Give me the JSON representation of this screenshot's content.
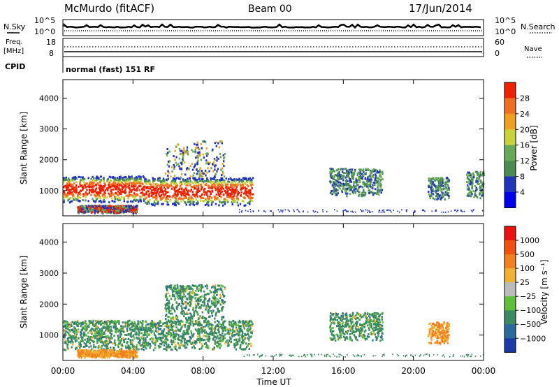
{
  "header": {
    "station": "McMurdo (fitACF)",
    "beam": "Beam 00",
    "date": "17/Jun/2014"
  },
  "noise_panel": {
    "left_label": "N.Sky",
    "right_label": "N.Search",
    "left_ticks": [
      "10^5",
      "10^0"
    ],
    "right_ticks": [
      "10^5",
      "10^0"
    ]
  },
  "freq_panel": {
    "left_label_1": "Freq.",
    "left_label_2": "[MHz]",
    "left_ticks": [
      "18",
      "8"
    ],
    "right_label": "Nave",
    "right_ticks": [
      "60",
      "0"
    ],
    "cpid_label": "CPID",
    "cpid_text": "normal (fast) 151 RF"
  },
  "x_axis": {
    "label": "Time UT",
    "ticks": [
      "00:00",
      "04:00",
      "08:00",
      "12:00",
      "16:00",
      "20:00",
      "00:00"
    ],
    "range_hours": [
      0,
      24
    ]
  },
  "chart_data": [
    {
      "type": "heatmap",
      "ylabel": "Slant Range [km]",
      "y_ticks": [
        "1000",
        "2000",
        "3000",
        "4000"
      ],
      "ylim": [
        180,
        4600
      ],
      "colorbar": {
        "label": "Power [dB]",
        "ticks": [
          "4",
          "8",
          "12",
          "16",
          "20",
          "24",
          "28"
        ],
        "range": [
          0,
          30
        ],
        "colors": [
          "#0000ee",
          "#2233bb",
          "#4a8a55",
          "#66aa55",
          "#c8d23a",
          "#f0a020",
          "#f07020",
          "#ee2200"
        ]
      },
      "blobs": [
        {
          "t": [
            0.0,
            4.6
          ],
          "r": [
            600,
            1450
          ],
          "level": "strong"
        },
        {
          "t": [
            4.6,
            10.8
          ],
          "r": [
            500,
            1400
          ],
          "level": "strong"
        },
        {
          "t": [
            5.8,
            8.0
          ],
          "r": [
            1400,
            2500
          ],
          "level": "streak"
        },
        {
          "t": [
            7.4,
            9.2
          ],
          "r": [
            1400,
            2600
          ],
          "level": "streak"
        },
        {
          "t": [
            0.8,
            4.2
          ],
          "r": [
            250,
            500
          ],
          "level": "medium"
        },
        {
          "t": [
            15.2,
            18.2
          ],
          "r": [
            800,
            1700
          ],
          "level": "weak"
        },
        {
          "t": [
            20.8,
            22.0
          ],
          "r": [
            700,
            1400
          ],
          "level": "weak"
        },
        {
          "t": [
            23.0,
            24.0
          ],
          "r": [
            700,
            1600
          ],
          "level": "weak"
        }
      ]
    },
    {
      "type": "heatmap",
      "ylabel": "Slant Range [km]",
      "y_ticks": [
        "1000",
        "2000",
        "3000",
        "4000"
      ],
      "ylim": [
        180,
        4600
      ],
      "colorbar": {
        "label": "Velocity [m s⁻¹]",
        "ticks": [
          "1000",
          "500",
          "100",
          "25",
          "−25",
          "−100",
          "−500",
          "−1000"
        ],
        "range": [
          -1000,
          1000
        ],
        "colors": [
          "#1a3aa8",
          "#2a6a9a",
          "#3c8a60",
          "#5fbf3a",
          "#bbbbbb",
          "#f0b030",
          "#f08020",
          "#f05010",
          "#ee1010"
        ]
      },
      "blobs": [
        {
          "t": [
            0.0,
            10.8
          ],
          "r": [
            500,
            1450
          ],
          "level": "green"
        },
        {
          "t": [
            5.8,
            9.2
          ],
          "r": [
            1400,
            2600
          ],
          "level": "green"
        },
        {
          "t": [
            15.2,
            18.2
          ],
          "r": [
            800,
            1700
          ],
          "level": "green"
        },
        {
          "t": [
            20.8,
            22.0
          ],
          "r": [
            700,
            1400
          ],
          "level": "orange"
        },
        {
          "t": [
            0.8,
            4.2
          ],
          "r": [
            250,
            500
          ],
          "level": "orange"
        }
      ]
    }
  ]
}
